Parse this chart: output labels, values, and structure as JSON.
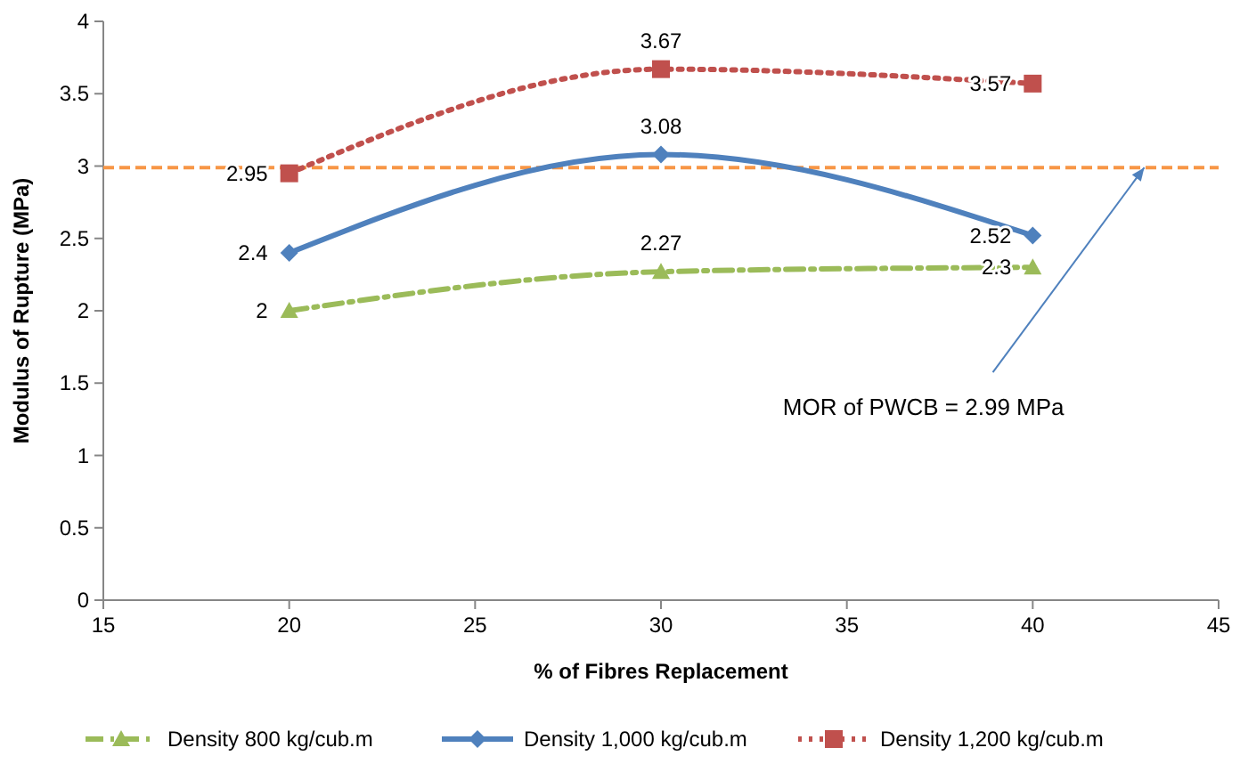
{
  "chart_data": {
    "type": "line",
    "xlabel": "% of Fibres Replacement",
    "ylabel": "Modulus of Rupture (MPa)",
    "x": [
      20,
      30,
      40
    ],
    "xlim": [
      15,
      45
    ],
    "xticks": [
      15,
      20,
      25,
      30,
      35,
      40,
      45
    ],
    "ylim": [
      0,
      4
    ],
    "yticks": [
      0,
      0.5,
      1,
      1.5,
      2,
      2.5,
      3,
      3.5,
      4
    ],
    "series": [
      {
        "name": "Density 800 kg/cub.m",
        "color": "#9bbb59",
        "values": [
          2,
          2.27,
          2.3
        ],
        "marker": "triangle",
        "line_style": "dashed"
      },
      {
        "name": "Density 1,000 kg/cub.m",
        "color": "#4f81bd",
        "values": [
          2.4,
          3.08,
          2.52
        ],
        "marker": "diamond",
        "line_style": "solid"
      },
      {
        "name": "Density 1,200 kg/cub.m",
        "color": "#c0504d",
        "values": [
          2.95,
          3.67,
          3.57
        ],
        "marker": "square",
        "line_style": "dotted"
      }
    ],
    "ref_lines": [
      {
        "axis": "y",
        "value": 2.99,
        "color": "#f79646",
        "line_style": "dashed"
      }
    ],
    "annotations": [
      {
        "text": "MOR of PWCB = 2.99 MPa",
        "x": 43,
        "y": 2.99
      }
    ],
    "data_labels": true,
    "grid": false,
    "legend": "bottom"
  }
}
